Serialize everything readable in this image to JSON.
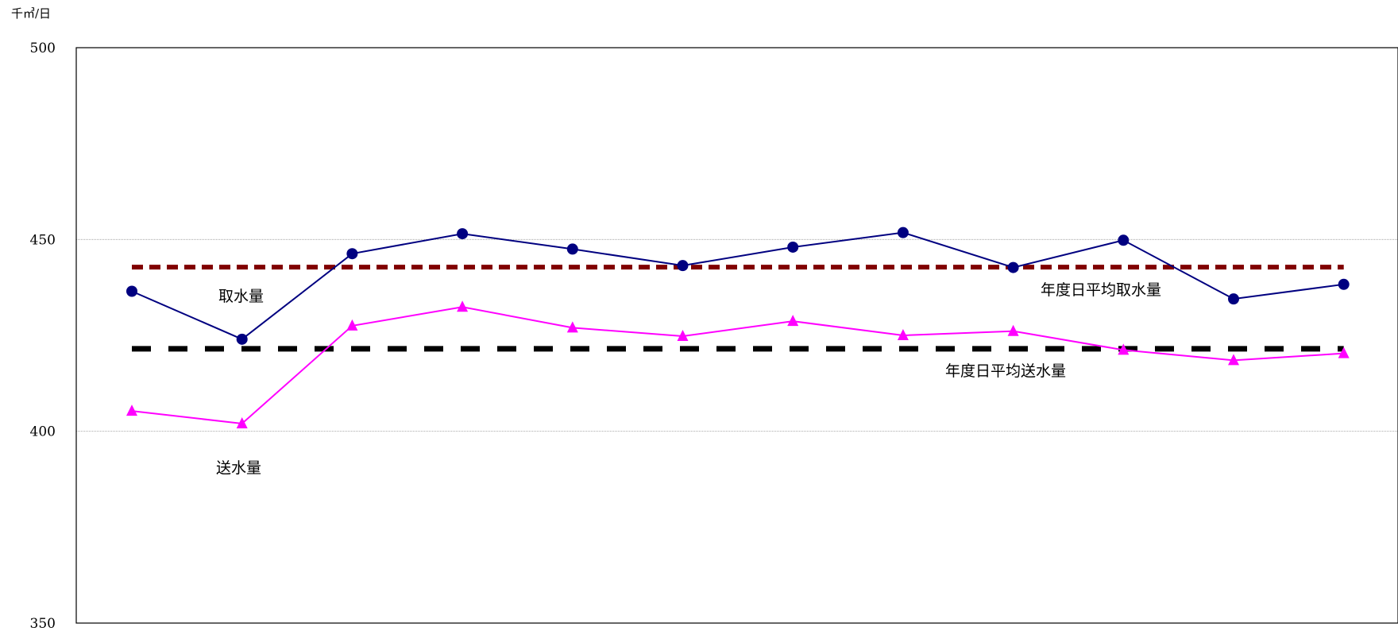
{
  "unit_label": "千㎥/日",
  "labels": {
    "intake": "取水量",
    "delivery": "送水量",
    "avg_intake": "年度日平均取水量",
    "avg_delivery": "年度日平均送水量"
  },
  "chart_data": {
    "type": "line",
    "title": "",
    "xlabel": "",
    "ylabel": "千㎥/日",
    "ylim": [
      350,
      500
    ],
    "yticks": [
      350,
      400,
      450,
      500
    ],
    "grid": "horizontal",
    "x": [
      1,
      2,
      3,
      4,
      5,
      6,
      7,
      8,
      9,
      10,
      11,
      12
    ],
    "series": [
      {
        "name": "取水量",
        "color": "#000080",
        "marker": "circle",
        "style": "solid",
        "values": [
          436.5,
          424,
          446.3,
          451.5,
          447.5,
          443.2,
          448,
          451.8,
          442.7,
          449.8,
          434.5,
          438.3
        ]
      },
      {
        "name": "送水量",
        "color": "#ff00ff",
        "marker": "triangle",
        "style": "solid",
        "values": [
          405.3,
          402,
          427.5,
          432.4,
          427,
          424.8,
          428.7,
          425,
          426.1,
          421.2,
          418.5,
          420.3
        ]
      },
      {
        "name": "年度日平均取水量",
        "color": "#800000",
        "marker": "none",
        "style": "dashed",
        "values": [
          442.8,
          442.8,
          442.8,
          442.8,
          442.8,
          442.8,
          442.8,
          442.8,
          442.8,
          442.8,
          442.8,
          442.8
        ]
      },
      {
        "name": "年度日平均送水量",
        "color": "#000000",
        "marker": "none",
        "style": "dashed",
        "values": [
          421.5,
          421.5,
          421.5,
          421.5,
          421.5,
          421.5,
          421.5,
          421.5,
          421.5,
          421.5,
          421.5,
          421.5
        ]
      }
    ]
  }
}
